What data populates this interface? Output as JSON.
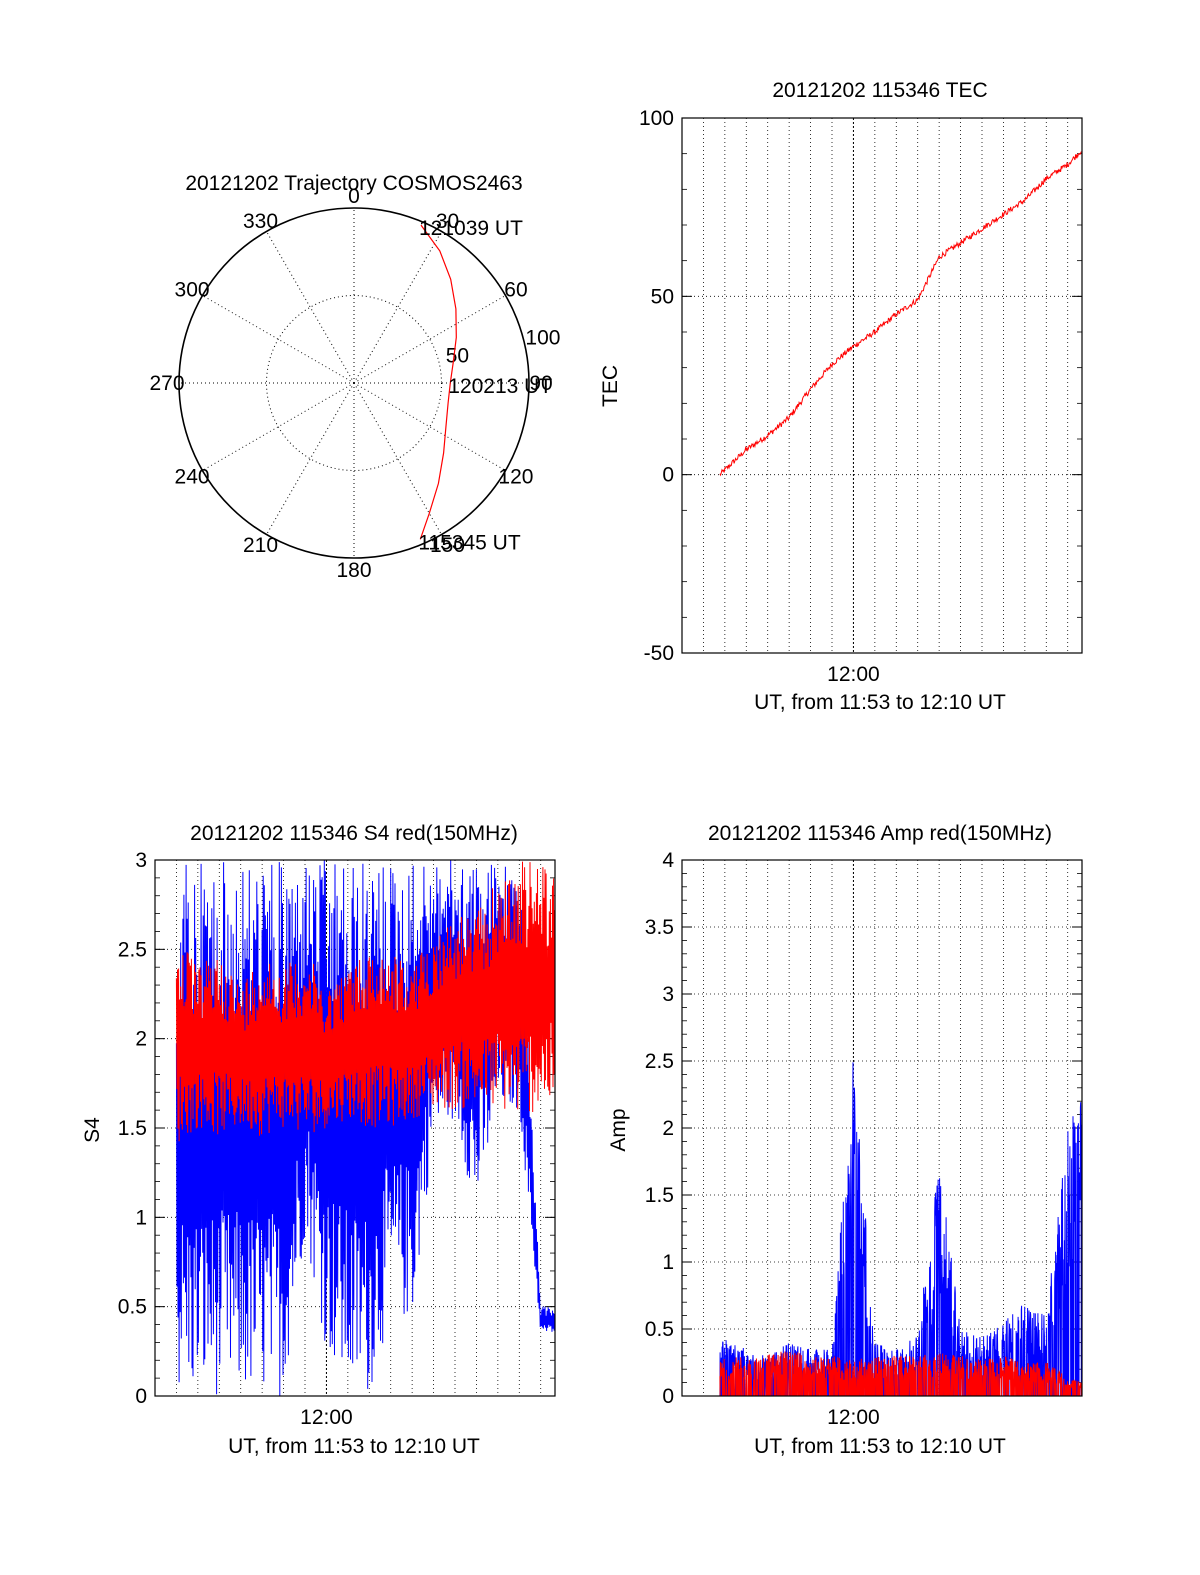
{
  "colors": {
    "red": "#ff0000",
    "blue": "#0000ff",
    "axis": "#000000",
    "grid": "#000000",
    "background": "#ffffff"
  },
  "chart_data": [
    {
      "id": "trajectory",
      "type": "polar",
      "title": "20121202 Trajectory COSMOS2463",
      "angle_labels": [
        "0",
        "30",
        "60",
        "90",
        "120",
        "150",
        "180",
        "210",
        "240",
        "270",
        "300",
        "330"
      ],
      "radius_labels": [
        "50",
        "100"
      ],
      "rlim": [
        0,
        100
      ],
      "grid": true,
      "series": [
        {
          "color": "red",
          "azimuth": [
            157,
            150,
            140,
            128,
            115,
            102,
            90,
            78,
            66,
            54,
            43,
            33,
            23
          ],
          "radius": [
            97,
            86,
            75,
            65,
            58,
            55,
            55,
            58,
            64,
            72,
            81,
            90,
            98
          ]
        }
      ],
      "annotations": [
        {
          "text": "121039 UT",
          "azimuth": 23,
          "radius": 98
        },
        {
          "text": "120213 UT",
          "azimuth": 90,
          "radius": 55
        },
        {
          "text": "115345 UT",
          "azimuth": 157,
          "radius": 97
        }
      ]
    },
    {
      "id": "tec",
      "type": "line",
      "title": "20121202 115346 TEC",
      "xlabel": "UT, from 11:53 to 12:10 UT",
      "ylabel": "TEC",
      "xlim": [
        "11:52:00",
        "12:10:40"
      ],
      "ylim": [
        -50,
        100
      ],
      "yticks": [
        "-50",
        "0",
        "50",
        "100"
      ],
      "xticks": [
        "12:00"
      ],
      "grid": true,
      "series": [
        {
          "color": "red",
          "x": [
            "11:53:46",
            "11:55:00",
            "11:56:00",
            "11:57:00",
            "11:58:00",
            "11:59:00",
            "12:00:00",
            "12:01:00",
            "12:02:00",
            "12:03:00",
            "12:03:30",
            "12:04:00",
            "12:05:00",
            "12:06:00",
            "12:07:00",
            "12:08:00",
            "12:09:00",
            "12:10:00",
            "12:10:39"
          ],
          "values": [
            0,
            7,
            11,
            16,
            24,
            31,
            36,
            40,
            45,
            49,
            55,
            61,
            65,
            69,
            73,
            77,
            83,
            87,
            91
          ]
        }
      ]
    },
    {
      "id": "s4",
      "type": "line",
      "title": "20121202 115346 S4 red(150MHz)",
      "xlabel": "UT, from 11:53 to 12:10 UT",
      "ylabel": "S4",
      "xlim": [
        "11:52:00",
        "12:10:40"
      ],
      "ylim": [
        0,
        3
      ],
      "yticks": [
        "0",
        "0.5",
        "1",
        "1.5",
        "2",
        "2.5",
        "3"
      ],
      "xticks": [
        "12:00"
      ],
      "grid": true,
      "series": [
        {
          "color": "blue",
          "x": [
            "11:53:00",
            "11:54:00",
            "11:55:00",
            "11:56:00",
            "11:57:00",
            "11:58:00",
            "11:59:00",
            "12:00:00",
            "12:01:00",
            "12:02:00",
            "12:03:00",
            "12:04:00",
            "12:05:00",
            "12:06:00",
            "12:07:00",
            "12:08:00",
            "12:09:00",
            "12:10:00",
            "12:10:39"
          ],
          "low": [
            0,
            0,
            0,
            0,
            0,
            0,
            0.9,
            0.25,
            0,
            0,
            0.45,
            0.4,
            1.45,
            1.55,
            1.0,
            1.6,
            1.6,
            0.35,
            0.35
          ],
          "high": [
            3,
            3,
            3,
            3,
            3,
            3,
            3,
            3,
            3,
            3,
            3,
            3,
            3,
            3,
            3,
            3,
            3,
            0.5,
            0.5
          ]
        },
        {
          "color": "red",
          "x": [
            "11:53:00",
            "11:54:00",
            "11:55:00",
            "11:56:00",
            "11:57:00",
            "11:58:00",
            "11:59:00",
            "12:00:00",
            "12:01:00",
            "12:02:00",
            "12:03:00",
            "12:04:00",
            "12:05:00",
            "12:06:00",
            "12:07:00",
            "12:08:00",
            "12:09:00",
            "12:10:00",
            "12:10:39"
          ],
          "low": [
            1.4,
            1.5,
            1.45,
            1.5,
            1.45,
            1.5,
            1.45,
            1.5,
            1.55,
            1.5,
            1.5,
            1.55,
            1.6,
            1.6,
            1.6,
            1.6,
            1.55,
            1.6,
            1.6
          ],
          "high": [
            2.6,
            2.4,
            2.5,
            2.3,
            2.5,
            2.4,
            2.5,
            2.3,
            2.4,
            2.5,
            2.5,
            2.4,
            2.6,
            2.7,
            2.7,
            2.9,
            3.0,
            3.0,
            3.0
          ]
        }
      ]
    },
    {
      "id": "amp",
      "type": "line",
      "title": "20121202 115346 Amp red(150MHz)",
      "xlabel": "UT, from 11:53 to 12:10 UT",
      "ylabel": "Amp",
      "xlim": [
        "11:52:00",
        "12:10:40"
      ],
      "ylim": [
        0,
        4
      ],
      "yticks": [
        "0",
        "0.5",
        "1",
        "1.5",
        "2",
        "2.5",
        "3",
        "3.5",
        "4"
      ],
      "xticks": [
        "12:00"
      ],
      "grid": true,
      "series": [
        {
          "color": "red",
          "x": [
            "11:53:00",
            "11:54:00",
            "11:55:00",
            "11:56:00",
            "11:57:00",
            "11:58:00",
            "11:59:00",
            "12:00:00",
            "12:01:00",
            "12:02:00",
            "12:03:00",
            "12:04:00",
            "12:05:00",
            "12:06:00",
            "12:07:00",
            "12:08:00",
            "12:09:00",
            "12:10:00",
            "12:10:39"
          ],
          "values": [
            0.3,
            0.28,
            0.3,
            0.32,
            0.35,
            0.3,
            0.3,
            0.28,
            0.3,
            0.3,
            0.3,
            0.32,
            0.3,
            0.28,
            0.3,
            0.25,
            0.25,
            0.15,
            0.1
          ]
        },
        {
          "color": "blue",
          "x": [
            "11:53:00",
            "11:54:00",
            "11:55:00",
            "11:56:00",
            "11:57:00",
            "11:58:00",
            "11:59:00",
            "12:00:00",
            "12:01:00",
            "12:02:00",
            "12:03:00",
            "12:04:00",
            "12:05:00",
            "12:06:00",
            "12:07:00",
            "12:08:00",
            "12:09:00",
            "12:10:00",
            "12:10:39"
          ],
          "values": [
            0.3,
            0.45,
            0.35,
            0.3,
            0.4,
            0.35,
            0.35,
            2.6,
            0.4,
            0.35,
            0.45,
            1.8,
            0.5,
            0.45,
            0.55,
            0.7,
            0.6,
            2.0,
            2.4
          ]
        }
      ]
    }
  ]
}
